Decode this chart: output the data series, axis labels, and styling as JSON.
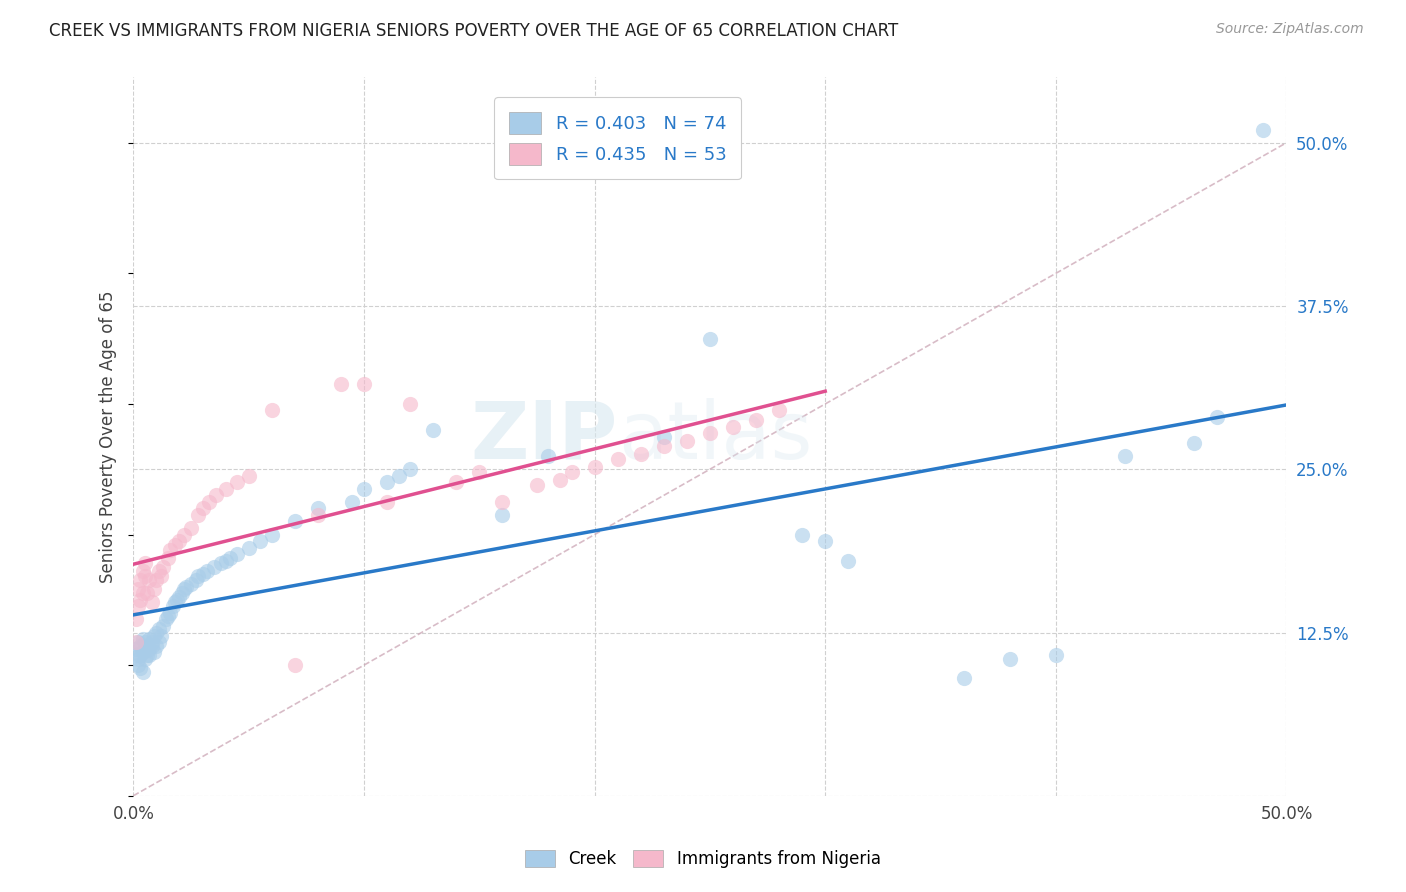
{
  "title": "CREEK VS IMMIGRANTS FROM NIGERIA SENIORS POVERTY OVER THE AGE OF 65 CORRELATION CHART",
  "source": "Source: ZipAtlas.com",
  "ylabel": "Seniors Poverty Over the Age of 65",
  "xlim": [
    0.0,
    0.5
  ],
  "ylim": [
    0.0,
    0.55
  ],
  "xticks": [
    0.0,
    0.1,
    0.2,
    0.3,
    0.4,
    0.5
  ],
  "xticklabels": [
    "0.0%",
    "",
    "",
    "",
    "",
    "50.0%"
  ],
  "ytick_positions": [
    0.0,
    0.125,
    0.25,
    0.375,
    0.5
  ],
  "yticklabels_right": [
    "",
    "12.5%",
    "25.0%",
    "37.5%",
    "50.0%"
  ],
  "creek_color": "#a8cce8",
  "nigeria_color": "#f5b8cb",
  "creek_line_color": "#2979c8",
  "nigeria_line_color": "#e05090",
  "creek_R": 0.403,
  "creek_N": 74,
  "nigeria_R": 0.435,
  "nigeria_N": 53,
  "creek_scatter_x": [
    0.001,
    0.001,
    0.002,
    0.002,
    0.002,
    0.003,
    0.003,
    0.003,
    0.004,
    0.004,
    0.004,
    0.005,
    0.005,
    0.005,
    0.006,
    0.006,
    0.007,
    0.007,
    0.007,
    0.008,
    0.008,
    0.009,
    0.009,
    0.01,
    0.01,
    0.011,
    0.011,
    0.012,
    0.013,
    0.014,
    0.015,
    0.016,
    0.017,
    0.018,
    0.019,
    0.02,
    0.021,
    0.022,
    0.023,
    0.025,
    0.027,
    0.028,
    0.03,
    0.032,
    0.035,
    0.038,
    0.04,
    0.042,
    0.045,
    0.05,
    0.055,
    0.06,
    0.07,
    0.08,
    0.095,
    0.1,
    0.11,
    0.115,
    0.12,
    0.13,
    0.16,
    0.18,
    0.23,
    0.25,
    0.29,
    0.3,
    0.31,
    0.36,
    0.38,
    0.4,
    0.43,
    0.46,
    0.47,
    0.49
  ],
  "creek_scatter_y": [
    0.108,
    0.112,
    0.1,
    0.118,
    0.105,
    0.098,
    0.115,
    0.108,
    0.11,
    0.12,
    0.095,
    0.112,
    0.118,
    0.105,
    0.115,
    0.108,
    0.12,
    0.112,
    0.108,
    0.118,
    0.115,
    0.11,
    0.122,
    0.115,
    0.125,
    0.118,
    0.128,
    0.122,
    0.13,
    0.135,
    0.138,
    0.14,
    0.145,
    0.148,
    0.15,
    0.152,
    0.155,
    0.158,
    0.16,
    0.162,
    0.165,
    0.168,
    0.17,
    0.172,
    0.175,
    0.178,
    0.18,
    0.182,
    0.185,
    0.19,
    0.195,
    0.2,
    0.21,
    0.22,
    0.225,
    0.235,
    0.24,
    0.245,
    0.25,
    0.28,
    0.215,
    0.26,
    0.275,
    0.35,
    0.2,
    0.195,
    0.18,
    0.09,
    0.105,
    0.108,
    0.26,
    0.27,
    0.29,
    0.51
  ],
  "nigeria_scatter_x": [
    0.001,
    0.001,
    0.002,
    0.002,
    0.003,
    0.003,
    0.004,
    0.004,
    0.005,
    0.005,
    0.006,
    0.007,
    0.008,
    0.009,
    0.01,
    0.011,
    0.012,
    0.013,
    0.015,
    0.016,
    0.018,
    0.02,
    0.022,
    0.025,
    0.028,
    0.03,
    0.033,
    0.036,
    0.04,
    0.045,
    0.05,
    0.06,
    0.07,
    0.08,
    0.09,
    0.1,
    0.11,
    0.12,
    0.14,
    0.15,
    0.16,
    0.175,
    0.185,
    0.19,
    0.2,
    0.21,
    0.22,
    0.23,
    0.24,
    0.25,
    0.26,
    0.27,
    0.28
  ],
  "nigeria_scatter_y": [
    0.118,
    0.135,
    0.145,
    0.158,
    0.15,
    0.165,
    0.155,
    0.172,
    0.168,
    0.178,
    0.155,
    0.165,
    0.148,
    0.158,
    0.165,
    0.172,
    0.168,
    0.175,
    0.182,
    0.188,
    0.192,
    0.195,
    0.2,
    0.205,
    0.215,
    0.22,
    0.225,
    0.23,
    0.235,
    0.24,
    0.245,
    0.295,
    0.1,
    0.215,
    0.315,
    0.315,
    0.225,
    0.3,
    0.24,
    0.248,
    0.225,
    0.238,
    0.242,
    0.248,
    0.252,
    0.258,
    0.262,
    0.268,
    0.272,
    0.278,
    0.282,
    0.288,
    0.295
  ],
  "watermark_zip": "ZIP",
  "watermark_atlas": "atlas",
  "background_color": "#ffffff",
  "grid_color": "#d0d0d0",
  "ref_line_color": "#c8a0b0"
}
